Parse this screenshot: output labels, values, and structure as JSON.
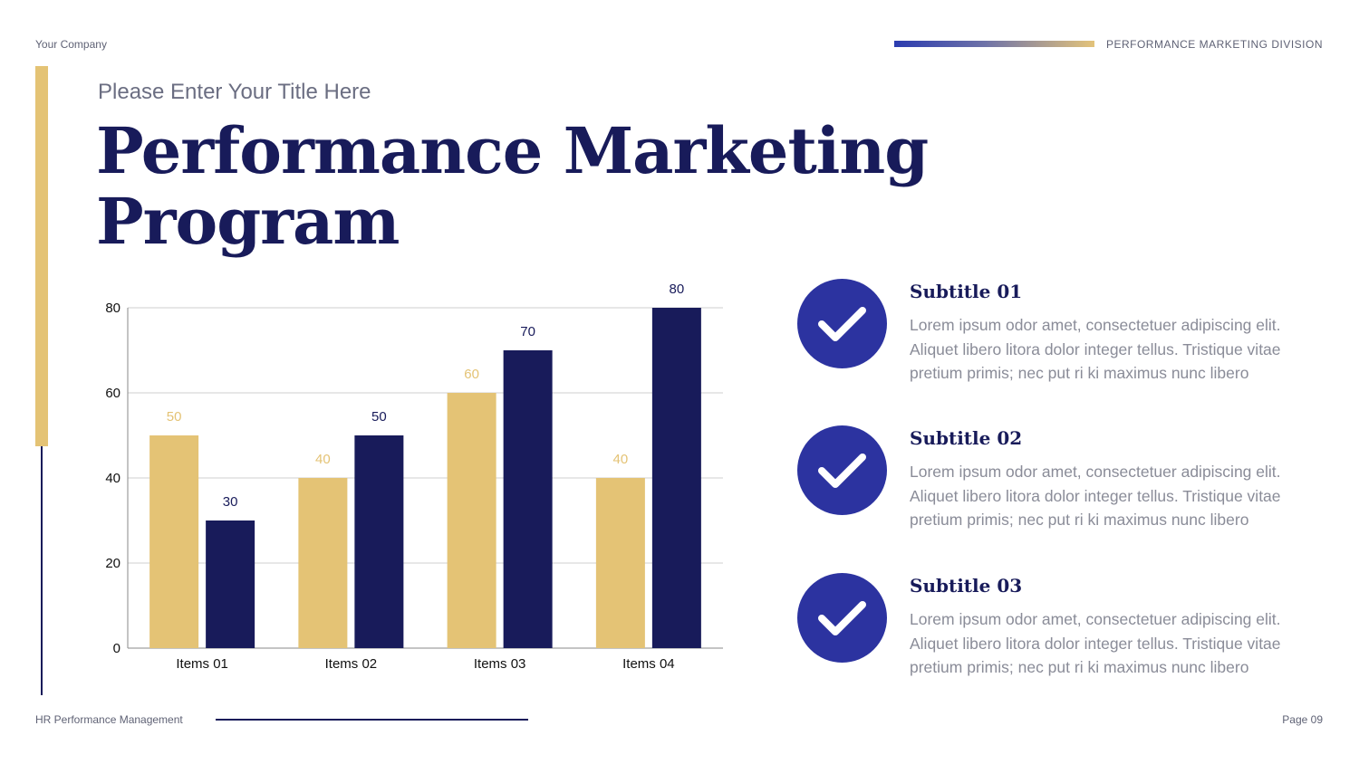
{
  "header": {
    "company": "Your Company",
    "division": "PERFORMANCE MARKETING DIVISION"
  },
  "title": {
    "pre_title": "Please Enter Your Title Here",
    "line1": "Performance Marketing",
    "line2": "Program"
  },
  "chart_data": {
    "type": "bar",
    "categories": [
      "Items 01",
      "Items 02",
      "Items 03",
      "Items 04"
    ],
    "series": [
      {
        "values": [
          50,
          40,
          60,
          40
        ],
        "color": "#e4c375"
      },
      {
        "values": [
          30,
          50,
          70,
          80
        ],
        "color": "#181b5a"
      }
    ],
    "ylim": [
      0,
      80
    ],
    "yticks": [
      0,
      20,
      40,
      60,
      80
    ],
    "grid": true,
    "data_labels": true
  },
  "features": [
    {
      "subtitle": "Subtitle 01",
      "lines": [
        "Lorem ipsum odor amet, consectetuer adipiscing elit.",
        "Aliquet libero litora dolor integer tellus. Tristique vitae",
        "pretium primis; nec put ri ki maximus nunc libero"
      ],
      "icon": "check-icon"
    },
    {
      "subtitle": "Subtitle 02",
      "lines": [
        "Lorem ipsum odor amet, consectetuer adipiscing elit.",
        "Aliquet libero litora dolor integer tellus. Tristique vitae",
        "pretium primis; nec put ri ki maximus nunc libero"
      ],
      "icon": "check-icon"
    },
    {
      "subtitle": "Subtitle 03",
      "lines": [
        "Lorem ipsum odor amet, consectetuer adipiscing elit.",
        "Aliquet libero litora dolor integer tellus. Tristique vitae",
        "pretium primis; nec put ri ki maximus nunc libero"
      ],
      "icon": "check-icon"
    }
  ],
  "footer": {
    "left": "HR Performance Management",
    "page": "Page 09"
  },
  "colors": {
    "navy": "#181b5a",
    "gold": "#e4c375",
    "accent_blue": "#2c33a0"
  }
}
